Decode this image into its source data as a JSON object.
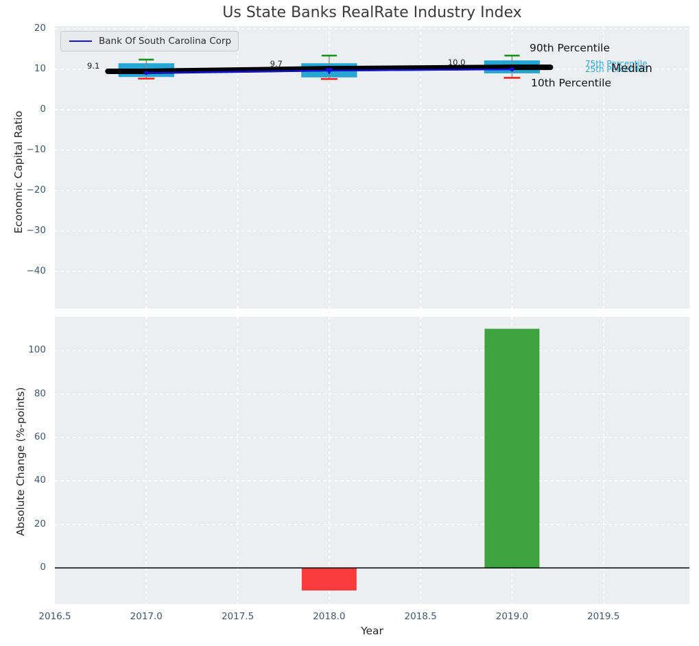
{
  "title": "Us State Banks RealRate Industry Index",
  "colors": {
    "plot_background": "#eceff1",
    "grid": "#ffffff",
    "tick_label": "#40566a",
    "axis_text": "#262626",
    "box_fill": "#27a6d4",
    "whisker_cap_top": "#159415",
    "whisker_cap_bottom": "#f41f1f",
    "whisker_line": "#848484",
    "median_line": "#000000",
    "company_line": "#1111dd",
    "bar_negative": "#f93b3b",
    "bar_positive": "#3ea33e",
    "annotation_cyan": "#29a8d8",
    "annotation_black": "#111111"
  },
  "legend": {
    "label": "Bank Of South Carolina Corp"
  },
  "chart_data": [
    {
      "type": "boxplot",
      "title": "Us State Banks RealRate Industry Index",
      "ylabel": "Economic Capital Ratio",
      "xlabel": "",
      "ylim": [
        -49.2,
        20.7
      ],
      "xlim": [
        2016.5,
        2019.97
      ],
      "grid": true,
      "legend_position": "upper left",
      "yticks": [
        {
          "label": "20",
          "v": 20
        },
        {
          "label": "10",
          "v": 10
        },
        {
          "label": "0",
          "v": 0
        },
        {
          "label": "−10",
          "v": -10
        },
        {
          "label": "−20",
          "v": -20
        },
        {
          "label": "−30",
          "v": -30
        },
        {
          "label": "−40",
          "v": -40
        }
      ],
      "series": [
        {
          "name": "Bank Of South Carolina Corp",
          "type": "line",
          "x": [
            2017,
            2018,
            2019
          ],
          "y": [
            9.1,
            9.7,
            10.0
          ],
          "point_labels": [
            "9.1",
            "9.7",
            "10.0"
          ]
        },
        {
          "name": "Industry Median",
          "type": "line",
          "x": [
            2016.79,
            2017,
            2018,
            2019,
            2019.21
          ],
          "y": [
            9.5,
            9.5,
            10.15,
            10.5,
            10.5
          ]
        }
      ],
      "boxes": [
        {
          "x": 2017,
          "p10": 7.7,
          "p25": 8.1,
          "median": 9.5,
          "p75": 11.5,
          "p90": 12.4
        },
        {
          "x": 2018,
          "p10": 7.6,
          "p25": 8.0,
          "median": 10.15,
          "p75": 11.5,
          "p90": 13.4
        },
        {
          "x": 2019,
          "p10": 7.9,
          "p25": 9.0,
          "median": 10.5,
          "p75": 12.2,
          "p90": 13.4
        }
      ],
      "box_width": 0.305,
      "annotations": [
        {
          "text": "90th Percentile",
          "style": "black"
        },
        {
          "text": "75th Percentile",
          "style": "cyan"
        },
        {
          "text": "25th Percentile",
          "style": "cyan"
        },
        {
          "text": "Median",
          "style": "black"
        },
        {
          "text": "10th Percentile",
          "style": "black"
        }
      ]
    },
    {
      "type": "bar",
      "ylabel": "Absolute Change (%-points)",
      "xlabel": "Year",
      "ylim": [
        -16.7,
        115.5
      ],
      "xlim": [
        2016.5,
        2019.97
      ],
      "grid": true,
      "yticks": [
        {
          "label": "100",
          "v": 100
        },
        {
          "label": "80",
          "v": 80
        },
        {
          "label": "60",
          "v": 60
        },
        {
          "label": "40",
          "v": 40
        },
        {
          "label": "20",
          "v": 20
        },
        {
          "label": "0",
          "v": 0
        }
      ],
      "xticks": [
        {
          "label": "2016.5",
          "v": 2016.5
        },
        {
          "label": "2017.0",
          "v": 2017.0
        },
        {
          "label": "2017.5",
          "v": 2017.5
        },
        {
          "label": "2018.0",
          "v": 2018.0
        },
        {
          "label": "2018.5",
          "v": 2018.5
        },
        {
          "label": "2019.0",
          "v": 2019.0
        },
        {
          "label": "2019.5",
          "v": 2019.5
        }
      ],
      "bars": [
        {
          "x": 2018,
          "value": -10.4
        },
        {
          "x": 2019,
          "value": 110
        }
      ],
      "bar_width": 0.3,
      "zero_line": true
    }
  ]
}
